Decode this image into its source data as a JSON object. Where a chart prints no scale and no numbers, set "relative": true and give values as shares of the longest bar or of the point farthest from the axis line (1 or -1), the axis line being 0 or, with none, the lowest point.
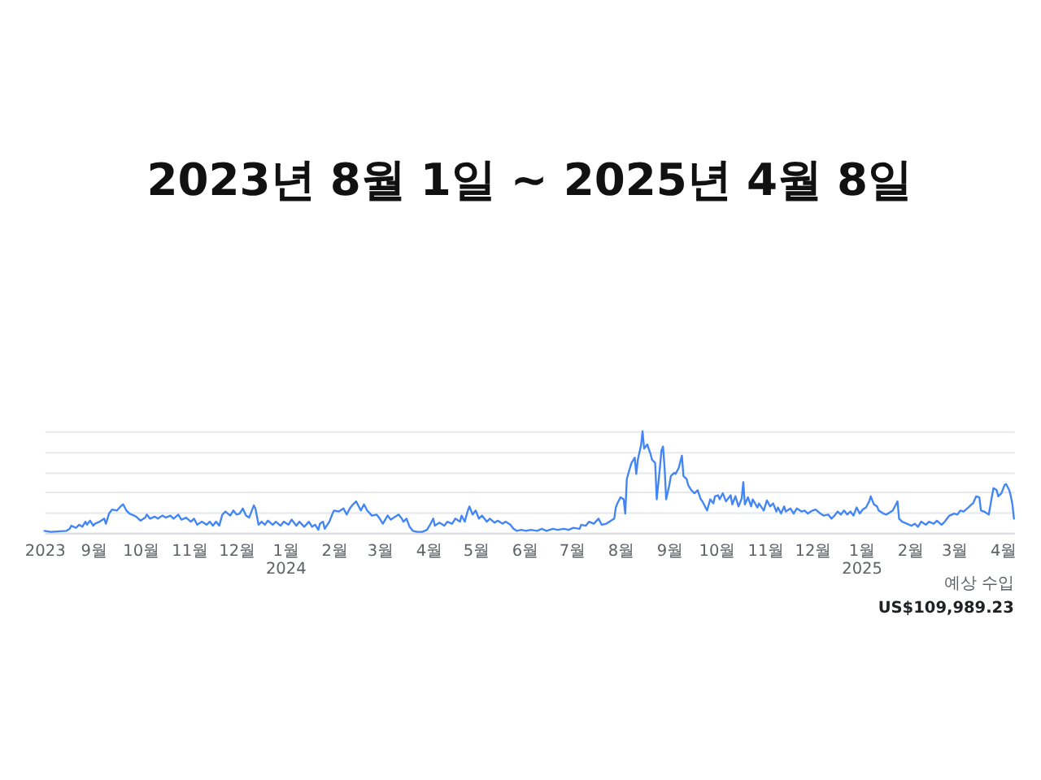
{
  "chart_data": {
    "type": "line",
    "title": "2023년 8월 1일 ~ 2025년 4월 8일",
    "relative": true,
    "grid": "y",
    "tick_labels": "x",
    "xlim": [
      "2023-08-01",
      "2025-04-08"
    ],
    "xticks": [
      {
        "value": "2023-08-01",
        "label": "2023"
      },
      {
        "value": "2023-09-01",
        "label": "9월"
      },
      {
        "value": "2023-10-01",
        "label": "10월"
      },
      {
        "value": "2023-11-01",
        "label": "11월"
      },
      {
        "value": "2023-12-01",
        "label": "12월"
      },
      {
        "value": "2024-01-01",
        "label": "1월 2024"
      },
      {
        "value": "2024-02-01",
        "label": "2월"
      },
      {
        "value": "2024-03-01",
        "label": "3월"
      },
      {
        "value": "2024-04-01",
        "label": "4월"
      },
      {
        "value": "2024-05-01",
        "label": "5월"
      },
      {
        "value": "2024-06-01",
        "label": "6월"
      },
      {
        "value": "2024-07-01",
        "label": "7월"
      },
      {
        "value": "2024-08-01",
        "label": "8월"
      },
      {
        "value": "2024-09-01",
        "label": "9월"
      },
      {
        "value": "2024-10-01",
        "label": "10월"
      },
      {
        "value": "2024-11-01",
        "label": "11월"
      },
      {
        "value": "2024-12-01",
        "label": "12월"
      },
      {
        "value": "2025-01-01",
        "label": "1월 2025"
      },
      {
        "value": "2025-02-01",
        "label": "2월"
      },
      {
        "value": "2025-03-01",
        "label": "3월"
      },
      {
        "value": "2025-04-01",
        "label": "4월"
      }
    ],
    "x": [
      "2023-08-01",
      "2023-08-05",
      "2023-08-15",
      "2023-08-17",
      "2023-08-18",
      "2023-08-21",
      "2023-08-23",
      "2023-08-25",
      "2023-08-27",
      "2023-08-28",
      "2023-08-30",
      "2023-09-01",
      "2023-09-02",
      "2023-09-05",
      "2023-09-08",
      "2023-09-09",
      "2023-09-11",
      "2023-09-13",
      "2023-09-16",
      "2023-09-19",
      "2023-09-20",
      "2023-09-22",
      "2023-09-24",
      "2023-09-27",
      "2023-09-29",
      "2023-10-01",
      "2023-10-04",
      "2023-10-05",
      "2023-10-07",
      "2023-10-10",
      "2023-10-12",
      "2023-10-15",
      "2023-10-17",
      "2023-10-20",
      "2023-10-22",
      "2023-10-25",
      "2023-10-27",
      "2023-10-30",
      "2023-11-02",
      "2023-11-04",
      "2023-11-06",
      "2023-11-09",
      "2023-11-12",
      "2023-11-14",
      "2023-11-16",
      "2023-11-18",
      "2023-11-20",
      "2023-11-22",
      "2023-11-24",
      "2023-11-27",
      "2023-11-29",
      "2023-12-01",
      "2023-12-03",
      "2023-12-05",
      "2023-12-07",
      "2023-12-09",
      "2023-12-12",
      "2023-12-13",
      "2023-12-15",
      "2023-12-17",
      "2023-12-19",
      "2023-12-21",
      "2023-12-24",
      "2023-12-26",
      "2023-12-29",
      "2023-12-31",
      "2024-01-03",
      "2024-01-05",
      "2024-01-08",
      "2024-01-10",
      "2024-01-13",
      "2024-01-16",
      "2024-01-18",
      "2024-01-20",
      "2024-01-22",
      "2024-01-23",
      "2024-01-25",
      "2024-01-26",
      "2024-01-29",
      "2024-01-31",
      "2024-02-01",
      "2024-02-04",
      "2024-02-07",
      "2024-02-09",
      "2024-02-11",
      "2024-02-13",
      "2024-02-15",
      "2024-02-17",
      "2024-02-18",
      "2024-02-20",
      "2024-02-22",
      "2024-02-25",
      "2024-02-28",
      "2024-03-01",
      "2024-03-03",
      "2024-03-06",
      "2024-03-08",
      "2024-03-10",
      "2024-03-13",
      "2024-03-15",
      "2024-03-16",
      "2024-03-18",
      "2024-03-20",
      "2024-03-22",
      "2024-03-25",
      "2024-03-28",
      "2024-03-31",
      "2024-04-02",
      "2024-04-04",
      "2024-04-05",
      "2024-04-08",
      "2024-04-11",
      "2024-04-13",
      "2024-04-16",
      "2024-04-18",
      "2024-04-21",
      "2024-04-22",
      "2024-04-24",
      "2024-04-26",
      "2024-04-27",
      "2024-04-29",
      "2024-05-01",
      "2024-05-03",
      "2024-05-05",
      "2024-05-08",
      "2024-05-10",
      "2024-05-13",
      "2024-05-15",
      "2024-05-18",
      "2024-05-20",
      "2024-05-23",
      "2024-05-25",
      "2024-05-27",
      "2024-05-30",
      "2024-06-02",
      "2024-06-05",
      "2024-06-09",
      "2024-06-12",
      "2024-06-15",
      "2024-06-19",
      "2024-06-22",
      "2024-06-26",
      "2024-06-29",
      "2024-07-02",
      "2024-07-06",
      "2024-07-07",
      "2024-07-10",
      "2024-07-12",
      "2024-07-15",
      "2024-07-18",
      "2024-07-20",
      "2024-07-23",
      "2024-07-25",
      "2024-07-28",
      "2024-07-29",
      "2024-07-30",
      "2024-08-01",
      "2024-08-03",
      "2024-08-04",
      "2024-08-05",
      "2024-08-07",
      "2024-08-08",
      "2024-08-10",
      "2024-08-11",
      "2024-08-12",
      "2024-08-14",
      "2024-08-15",
      "2024-08-16",
      "2024-08-18",
      "2024-08-20",
      "2024-08-21",
      "2024-08-23",
      "2024-08-24",
      "2024-08-26",
      "2024-08-27",
      "2024-08-28",
      "2024-08-29",
      "2024-08-30",
      "2024-09-01",
      "2024-09-02",
      "2024-09-04",
      "2024-09-05",
      "2024-09-07",
      "2024-09-09",
      "2024-09-10",
      "2024-09-12",
      "2024-09-13",
      "2024-09-15",
      "2024-09-17",
      "2024-09-19",
      "2024-09-21",
      "2024-09-22",
      "2024-09-24",
      "2024-09-25",
      "2024-09-27",
      "2024-09-29",
      "2024-09-30",
      "2024-10-02",
      "2024-10-03",
      "2024-10-05",
      "2024-10-07",
      "2024-10-10",
      "2024-10-11",
      "2024-10-13",
      "2024-10-15",
      "2024-10-17",
      "2024-10-18",
      "2024-10-19",
      "2024-10-21",
      "2024-10-23",
      "2024-10-24",
      "2024-10-27",
      "2024-10-28",
      "2024-10-31",
      "2024-11-02",
      "2024-11-04",
      "2024-11-06",
      "2024-11-08",
      "2024-11-09",
      "2024-11-11",
      "2024-11-13",
      "2024-11-14",
      "2024-11-17",
      "2024-11-19",
      "2024-11-21",
      "2024-11-24",
      "2024-11-26",
      "2024-11-28",
      "2024-12-01",
      "2024-12-03",
      "2024-12-06",
      "2024-12-08",
      "2024-12-11",
      "2024-12-13",
      "2024-12-15",
      "2024-12-17",
      "2024-12-19",
      "2024-12-21",
      "2024-12-23",
      "2024-12-25",
      "2024-12-27",
      "2024-12-29",
      "2024-12-31",
      "2025-01-02",
      "2025-01-04",
      "2025-01-06",
      "2025-01-07",
      "2025-01-09",
      "2025-01-11",
      "2025-01-12",
      "2025-01-15",
      "2025-01-17",
      "2025-01-18",
      "2025-01-21",
      "2025-01-23",
      "2025-01-24",
      "2025-01-25",
      "2025-01-27",
      "2025-01-30",
      "2025-02-02",
      "2025-02-04",
      "2025-02-06",
      "2025-02-08",
      "2025-02-11",
      "2025-02-13",
      "2025-02-16",
      "2025-02-18",
      "2025-02-21",
      "2025-02-23",
      "2025-02-26",
      "2025-03-01",
      "2025-03-03",
      "2025-03-05",
      "2025-03-07",
      "2025-03-10",
      "2025-03-12",
      "2025-03-13",
      "2025-03-15",
      "2025-03-17",
      "2025-03-18",
      "2025-03-20",
      "2025-03-22",
      "2025-03-23",
      "2025-03-25",
      "2025-03-26",
      "2025-03-28",
      "2025-03-29",
      "2025-03-31",
      "2025-04-02",
      "2025-04-03",
      "2025-04-05",
      "2025-04-06",
      "2025-04-07",
      "2025-04-08"
    ],
    "series": [
      {
        "color": "#4285f4",
        "values": [
          0.02,
          0.01,
          0.02,
          0.04,
          0.07,
          0.05,
          0.08,
          0.06,
          0.11,
          0.08,
          0.12,
          0.07,
          0.09,
          0.11,
          0.14,
          0.09,
          0.19,
          0.23,
          0.22,
          0.27,
          0.28,
          0.22,
          0.19,
          0.17,
          0.15,
          0.12,
          0.15,
          0.18,
          0.14,
          0.16,
          0.14,
          0.17,
          0.15,
          0.17,
          0.14,
          0.18,
          0.13,
          0.15,
          0.11,
          0.14,
          0.08,
          0.11,
          0.08,
          0.11,
          0.07,
          0.11,
          0.07,
          0.18,
          0.21,
          0.17,
          0.22,
          0.18,
          0.19,
          0.24,
          0.17,
          0.15,
          0.27,
          0.24,
          0.08,
          0.11,
          0.08,
          0.12,
          0.08,
          0.11,
          0.07,
          0.11,
          0.08,
          0.13,
          0.07,
          0.11,
          0.06,
          0.11,
          0.06,
          0.08,
          0.03,
          0.09,
          0.11,
          0.04,
          0.11,
          0.19,
          0.22,
          0.21,
          0.24,
          0.18,
          0.24,
          0.28,
          0.31,
          0.25,
          0.22,
          0.28,
          0.22,
          0.17,
          0.18,
          0.14,
          0.09,
          0.17,
          0.13,
          0.15,
          0.18,
          0.14,
          0.11,
          0.14,
          0.06,
          0.02,
          0.01,
          0.01,
          0.03,
          0.08,
          0.14,
          0.07,
          0.1,
          0.07,
          0.11,
          0.09,
          0.14,
          0.11,
          0.17,
          0.11,
          0.22,
          0.26,
          0.18,
          0.22,
          0.14,
          0.17,
          0.11,
          0.14,
          0.1,
          0.12,
          0.09,
          0.11,
          0.08,
          0.04,
          0.02,
          0.03,
          0.02,
          0.03,
          0.02,
          0.04,
          0.02,
          0.04,
          0.03,
          0.04,
          0.03,
          0.05,
          0.04,
          0.08,
          0.07,
          0.11,
          0.09,
          0.14,
          0.08,
          0.09,
          0.11,
          0.14,
          0.25,
          0.29,
          0.35,
          0.33,
          0.19,
          0.53,
          0.64,
          0.69,
          0.74,
          0.58,
          0.72,
          0.86,
          1.0,
          0.83,
          0.87,
          0.78,
          0.72,
          0.69,
          0.33,
          0.64,
          0.81,
          0.85,
          0.64,
          0.33,
          0.47,
          0.56,
          0.59,
          0.58,
          0.64,
          0.76,
          0.56,
          0.53,
          0.47,
          0.42,
          0.39,
          0.42,
          0.33,
          0.31,
          0.25,
          0.22,
          0.33,
          0.29,
          0.36,
          0.37,
          0.33,
          0.39,
          0.31,
          0.37,
          0.28,
          0.36,
          0.26,
          0.34,
          0.5,
          0.28,
          0.35,
          0.26,
          0.33,
          0.25,
          0.29,
          0.22,
          0.32,
          0.26,
          0.29,
          0.21,
          0.25,
          0.19,
          0.26,
          0.21,
          0.24,
          0.19,
          0.24,
          0.21,
          0.22,
          0.19,
          0.22,
          0.23,
          0.19,
          0.17,
          0.18,
          0.14,
          0.17,
          0.21,
          0.18,
          0.22,
          0.18,
          0.21,
          0.17,
          0.25,
          0.19,
          0.23,
          0.25,
          0.31,
          0.36,
          0.28,
          0.26,
          0.22,
          0.19,
          0.18,
          0.19,
          0.22,
          0.28,
          0.31,
          0.14,
          0.11,
          0.09,
          0.07,
          0.09,
          0.06,
          0.11,
          0.08,
          0.11,
          0.09,
          0.12,
          0.08,
          0.11,
          0.17,
          0.19,
          0.18,
          0.22,
          0.21,
          0.25,
          0.28,
          0.29,
          0.36,
          0.35,
          0.22,
          0.21,
          0.19,
          0.18,
          0.36,
          0.44,
          0.42,
          0.36,
          0.39,
          0.47,
          0.48,
          0.42,
          0.36,
          0.28,
          0.14
        ]
      }
    ],
    "annotations": [
      "예상 수입",
      "US$109,989.23"
    ]
  }
}
